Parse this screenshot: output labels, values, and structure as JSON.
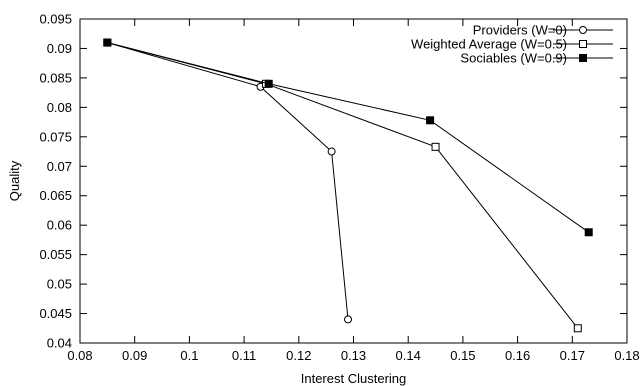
{
  "chart_data": {
    "type": "line",
    "title": "",
    "xlabel": "Interest Clustering",
    "ylabel": "Quality",
    "xlim": [
      0.08,
      0.18
    ],
    "ylim": [
      0.04,
      0.095
    ],
    "xticks": [
      "0.08",
      "0.09",
      "0.1",
      "0.11",
      "0.12",
      "0.13",
      "0.14",
      "0.15",
      "0.16",
      "0.17",
      "0.18"
    ],
    "yticks": [
      "0.04",
      "0.045",
      "0.05",
      "0.055",
      "0.06",
      "0.065",
      "0.07",
      "0.075",
      "0.08",
      "0.085",
      "0.09",
      "0.095"
    ],
    "grid": false,
    "legend_position": "top-right",
    "series": [
      {
        "name": "Providers (W=0)",
        "marker": "open-circle",
        "x": [
          0.085,
          0.113,
          0.126,
          0.129
        ],
        "y": [
          0.091,
          0.0835,
          0.0725,
          0.044
        ]
      },
      {
        "name": "Weighted Average (W=0.5)",
        "marker": "open-square",
        "x": [
          0.085,
          0.114,
          0.145,
          0.171
        ],
        "y": [
          0.091,
          0.084,
          0.0733,
          0.0425
        ]
      },
      {
        "name": "Sociables (W=0.9)",
        "marker": "filled-square",
        "x": [
          0.085,
          0.1145,
          0.144,
          0.173
        ],
        "y": [
          0.091,
          0.084,
          0.0778,
          0.0588
        ]
      }
    ]
  }
}
